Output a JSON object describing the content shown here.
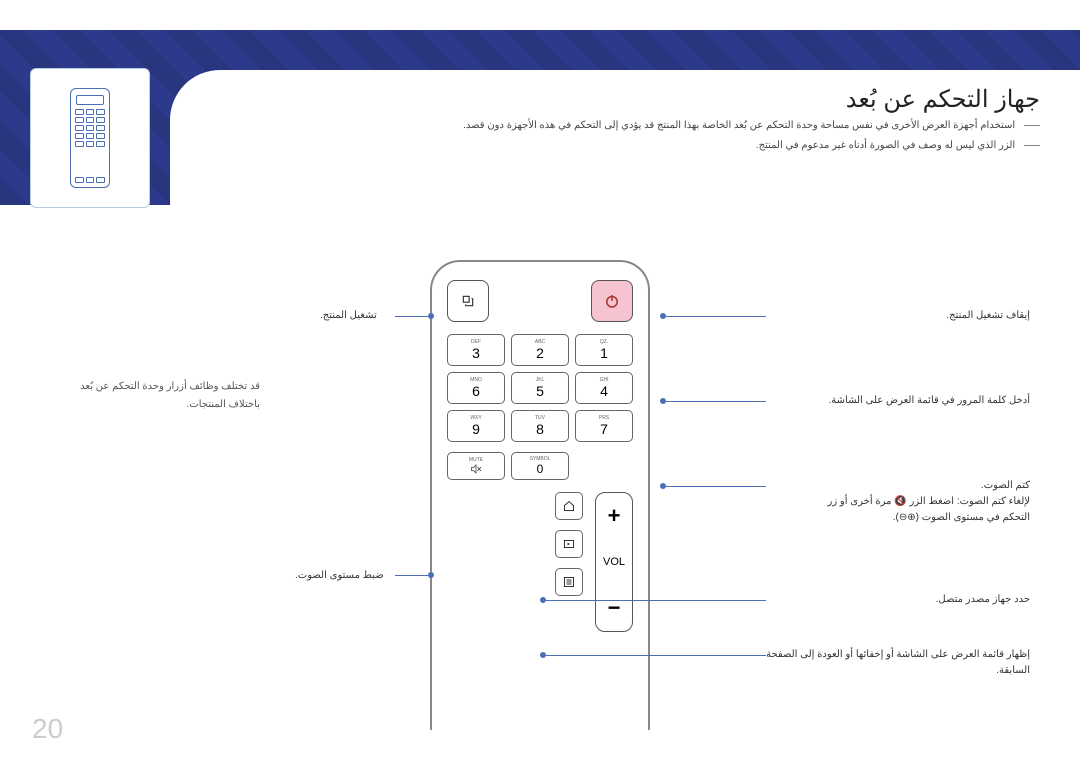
{
  "page_number": "20",
  "title": "جهاز التحكم عن بُعد",
  "warnings": [
    "استخدام أجهزة العرض الأخرى في نفس مساحة وحدة التحكم عن بُعد الخاصة بهذا المنتج قد يؤدي إلى التحكم في هذه الأجهزة دون قصد.",
    "الزر الذي ليس له وصف في الصورة أدناه غير مدعوم في المنتج."
  ],
  "left_note": "قد تختلف وظائف أزرار وحدة التحكم عن بُعد باختلاف المنتجات.",
  "callouts_left": {
    "power_on": "تشغيل المنتج.",
    "volume": "ضبط مستوى الصوت."
  },
  "callouts_right": {
    "power_off": "إيقاف تشغيل المنتج.",
    "passcode": "أدخل كلمة المرور في قائمة العرض على الشاشة.",
    "mute": "كتم الصوت.",
    "mute_sub1": "لإلغاء كتم الصوت: اضغط الزر 🔇 مرة أخرى أو زر",
    "mute_sub2": "التحكم في مستوى الصوت (⊕⊖).",
    "source": "حدد جهاز مصدر متصل.",
    "menu": "إظهار قائمة العرض على الشاشة أو إخفائها أو العودة إلى الصفحة السابقة."
  },
  "keypad": [
    {
      "n": "1",
      "t": ".QZ"
    },
    {
      "n": "2",
      "t": "ABC"
    },
    {
      "n": "3",
      "t": "DEF"
    },
    {
      "n": "4",
      "t": "GHI"
    },
    {
      "n": "5",
      "t": "JKL"
    },
    {
      "n": "6",
      "t": "MNO"
    },
    {
      "n": "7",
      "t": "PRS"
    },
    {
      "n": "8",
      "t": "TUV"
    },
    {
      "n": "9",
      "t": "WXY"
    }
  ],
  "symbol_label": "SYMBOL",
  "zero": "0",
  "mute_label": "MUTE",
  "vol_label": "VOL",
  "colors": {
    "accent": "#4a6fb5",
    "header": "#2d3a8c",
    "power": "#f5c4d0"
  }
}
